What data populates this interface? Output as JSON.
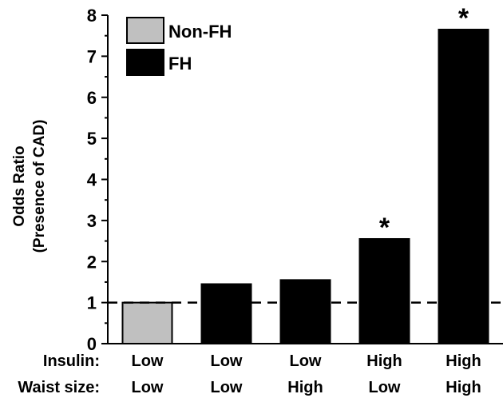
{
  "chart_data": {
    "type": "bar",
    "ylabel_line1": "Odds Ratio",
    "ylabel_line2": "(Presence of CAD)",
    "ylim": [
      0,
      8
    ],
    "yticks": [
      "0",
      "1",
      "2",
      "3",
      "4",
      "5",
      "6",
      "7",
      "8"
    ],
    "row_labels": {
      "insulin": "Insulin:",
      "waist": "Waist size:"
    },
    "categories": [
      {
        "insulin": "Low",
        "waist": "Low"
      },
      {
        "insulin": "Low",
        "waist": "Low"
      },
      {
        "insulin": "Low",
        "waist": "High"
      },
      {
        "insulin": "High",
        "waist": "Low"
      },
      {
        "insulin": "High",
        "waist": "High"
      }
    ],
    "bars": [
      {
        "value": 1.0,
        "group": "Non-FH",
        "significant": false
      },
      {
        "value": 1.45,
        "group": "FH",
        "significant": false
      },
      {
        "value": 1.55,
        "group": "FH",
        "significant": false
      },
      {
        "value": 2.55,
        "group": "FH",
        "significant": true
      },
      {
        "value": 7.65,
        "group": "FH",
        "significant": true
      }
    ],
    "significance_marker": "*",
    "legend": [
      {
        "label": "Non-FH",
        "color": "#c0c0c0"
      },
      {
        "label": "FH",
        "color": "#000000"
      }
    ],
    "legend_position": "top-left",
    "reference_line": 1,
    "reference_line_style": "dashed",
    "grid": false
  }
}
